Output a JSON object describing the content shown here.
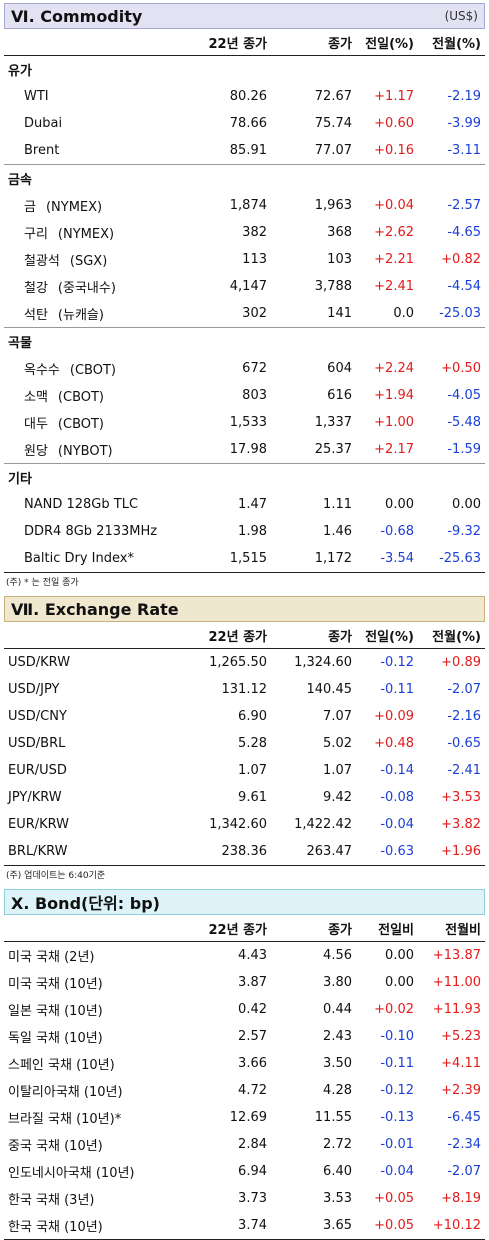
{
  "commodity": {
    "title": "Ⅵ. Commodity",
    "unit": "(US$)",
    "headers": [
      "",
      "22년 종가",
      "종가",
      "전일(%)",
      "전월(%)"
    ],
    "groups": [
      {
        "name": "유가",
        "rows": [
          {
            "label": "WTI",
            "exchange": "",
            "v1": "80.26",
            "v2": "72.67",
            "d1": "+1.17",
            "d2": "-2.19"
          },
          {
            "label": "Dubai",
            "exchange": "",
            "v1": "78.66",
            "v2": "75.74",
            "d1": "+0.60",
            "d2": "-3.99"
          },
          {
            "label": "Brent",
            "exchange": "",
            "v1": "85.91",
            "v2": "77.07",
            "d1": "+0.16",
            "d2": "-3.11"
          }
        ]
      },
      {
        "name": "금속",
        "rows": [
          {
            "label": "금",
            "exchange": "(NYMEX)",
            "v1": "1,874",
            "v2": "1,963",
            "d1": "+0.04",
            "d2": "-2.57"
          },
          {
            "label": "구리",
            "exchange": "(NYMEX)",
            "v1": "382",
            "v2": "368",
            "d1": "+2.62",
            "d2": "-4.65"
          },
          {
            "label": "철광석",
            "exchange": "(SGX)",
            "v1": "113",
            "v2": "103",
            "d1": "+2.21",
            "d2": "+0.82"
          },
          {
            "label": "철강",
            "exchange": "(중국내수)",
            "v1": "4,147",
            "v2": "3,788",
            "d1": "+2.41",
            "d2": "-4.54"
          },
          {
            "label": "석탄",
            "exchange": "(뉴캐슬)",
            "v1": "302",
            "v2": "141",
            "d1": "0.0",
            "d2": "-25.03"
          }
        ]
      },
      {
        "name": "곡물",
        "rows": [
          {
            "label": "옥수수",
            "exchange": "(CBOT)",
            "v1": "672",
            "v2": "604",
            "d1": "+2.24",
            "d2": "+0.50"
          },
          {
            "label": "소맥",
            "exchange": "(CBOT)",
            "v1": "803",
            "v2": "616",
            "d1": "+1.94",
            "d2": "-4.05"
          },
          {
            "label": "대두",
            "exchange": "(CBOT)",
            "v1": "1,533",
            "v2": "1,337",
            "d1": "+1.00",
            "d2": "-5.48"
          },
          {
            "label": "원당",
            "exchange": "(NYBOT)",
            "v1": "17.98",
            "v2": "25.37",
            "d1": "+2.17",
            "d2": "-1.59"
          }
        ]
      },
      {
        "name": "기타",
        "rows": [
          {
            "label": "NAND 128Gb TLC",
            "exchange": "",
            "v1": "1.47",
            "v2": "1.11",
            "d1": "0.00",
            "d2": "0.00"
          },
          {
            "label": "DDR4 8Gb 2133MHz",
            "exchange": "",
            "v1": "1.98",
            "v2": "1.46",
            "d1": "-0.68",
            "d2": "-9.32"
          },
          {
            "label": "Baltic Dry Index*",
            "exchange": "",
            "v1": "1,515",
            "v2": "1,172",
            "d1": "-3.54",
            "d2": "-25.63"
          }
        ]
      }
    ],
    "note": "(주) * 는 전일 종가"
  },
  "exchange": {
    "title": "Ⅶ. Exchange Rate",
    "headers": [
      "",
      "22년 종가",
      "종가",
      "전일(%)",
      "전월(%)"
    ],
    "rows": [
      {
        "label": "USD/KRW",
        "v1": "1,265.50",
        "v2": "1,324.60",
        "d1": "-0.12",
        "d2": "+0.89"
      },
      {
        "label": "USD/JPY",
        "v1": "131.12",
        "v2": "140.45",
        "d1": "-0.11",
        "d2": "-2.07"
      },
      {
        "label": "USD/CNY",
        "v1": "6.90",
        "v2": "7.07",
        "d1": "+0.09",
        "d2": "-2.16"
      },
      {
        "label": "USD/BRL",
        "v1": "5.28",
        "v2": "5.02",
        "d1": "+0.48",
        "d2": "-0.65"
      },
      {
        "label": "EUR/USD",
        "v1": "1.07",
        "v2": "1.07",
        "d1": "-0.14",
        "d2": "-2.41"
      },
      {
        "label": "JPY/KRW",
        "v1": "9.61",
        "v2": "9.42",
        "d1": "-0.08",
        "d2": "+3.53"
      },
      {
        "label": "EUR/KRW",
        "v1": "1,342.60",
        "v2": "1,422.42",
        "d1": "-0.04",
        "d2": "+3.82"
      },
      {
        "label": "BRL/KRW",
        "v1": "238.36",
        "v2": "263.47",
        "d1": "-0.63",
        "d2": "+1.96"
      }
    ],
    "note": "(주) 업데이트는 6:40기준"
  },
  "bond": {
    "title": "Ⅹ. Bond(단위: bp)",
    "headers": [
      "",
      "22년 종가",
      "종가",
      "전일비",
      "전월비"
    ],
    "rows": [
      {
        "label": "미국 국채 (2년)",
        "v1": "4.43",
        "v2": "4.56",
        "d1": "0.00",
        "d2": "+13.87"
      },
      {
        "label": "미국 국채 (10년)",
        "v1": "3.87",
        "v2": "3.80",
        "d1": "0.00",
        "d2": "+11.00"
      },
      {
        "label": "일본 국채 (10년)",
        "v1": "0.42",
        "v2": "0.44",
        "d1": "+0.02",
        "d2": "+11.93"
      },
      {
        "label": "독일 국채 (10년)",
        "v1": "2.57",
        "v2": "2.43",
        "d1": "-0.10",
        "d2": "+5.23"
      },
      {
        "label": "스페인 국채 (10년)",
        "v1": "3.66",
        "v2": "3.50",
        "d1": "-0.11",
        "d2": "+4.11"
      },
      {
        "label": "이탈리아국채 (10년)",
        "v1": "4.72",
        "v2": "4.28",
        "d1": "-0.12",
        "d2": "+2.39"
      },
      {
        "label": "브라질 국채 (10년)*",
        "v1": "12.69",
        "v2": "11.55",
        "d1": "-0.13",
        "d2": "-6.45"
      },
      {
        "label": "중국 국채 (10년)",
        "v1": "2.84",
        "v2": "2.72",
        "d1": "-0.01",
        "d2": "-2.34"
      },
      {
        "label": "인도네시아국채 (10년)",
        "v1": "6.94",
        "v2": "6.40",
        "d1": "-0.04",
        "d2": "-2.07"
      },
      {
        "label": "한국 국채 (3년)",
        "v1": "3.73",
        "v2": "3.53",
        "d1": "+0.05",
        "d2": "+8.19"
      },
      {
        "label": "한국 국채 (10년)",
        "v1": "3.74",
        "v2": "3.65",
        "d1": "+0.05",
        "d2": "+10.12"
      }
    ]
  },
  "colors": {
    "positive": "#e21b1b",
    "negative": "#1b3fd6",
    "neutral": "#111111"
  }
}
